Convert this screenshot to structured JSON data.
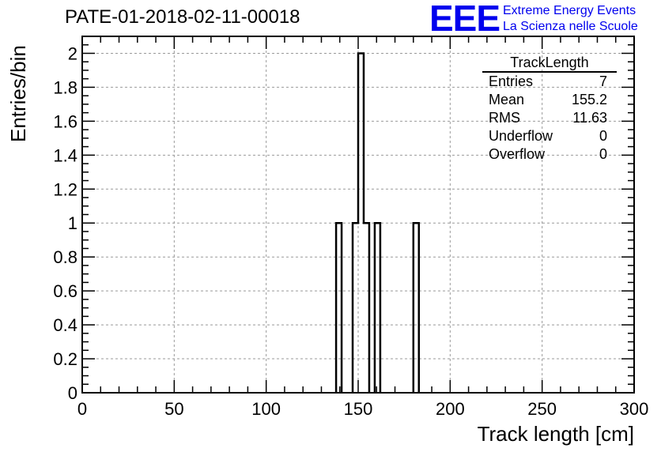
{
  "header": {
    "title": "PATE-01-2018-02-11-00018",
    "logo_mark": "EEE",
    "logo_line1": "Extreme Energy Events",
    "logo_line2": "La Scienza nelle Scuole",
    "brand_color": "#0000ee"
  },
  "stats_box": {
    "title": "TrackLength",
    "rows": [
      {
        "label": "Entries",
        "value": "7"
      },
      {
        "label": "Mean",
        "value": "155.2"
      },
      {
        "label": "RMS",
        "value": "11.63"
      },
      {
        "label": "Underflow",
        "value": "0"
      },
      {
        "label": "Overflow",
        "value": "0"
      }
    ]
  },
  "chart_data": {
    "type": "bar",
    "subtype": "histogram",
    "xlabel": "Track length [cm]",
    "ylabel": "Entries/bin",
    "xlim": [
      0,
      300
    ],
    "ylim": [
      0,
      2.1
    ],
    "xticks": [
      0,
      50,
      100,
      150,
      200,
      250,
      300
    ],
    "yticks": [
      0,
      0.2,
      0.4,
      0.6,
      0.8,
      1,
      1.2,
      1.4,
      1.6,
      1.8,
      2
    ],
    "ytick_labels": [
      "0",
      "0.2",
      "0.4",
      "0.6",
      "0.8",
      "1",
      "1.2",
      "1.4",
      "1.6",
      "1.8",
      "2"
    ],
    "bin_width": 3,
    "bins": [
      {
        "x_low": 138,
        "x_high": 141,
        "count": 1
      },
      {
        "x_low": 147,
        "x_high": 150,
        "count": 1
      },
      {
        "x_low": 150,
        "x_high": 153,
        "count": 2
      },
      {
        "x_low": 153,
        "x_high": 156,
        "count": 1
      },
      {
        "x_low": 159,
        "x_high": 162,
        "count": 1
      },
      {
        "x_low": 180,
        "x_high": 183,
        "count": 1
      }
    ],
    "grid": true,
    "line_color": "#000000",
    "grid_color": "#999999"
  }
}
